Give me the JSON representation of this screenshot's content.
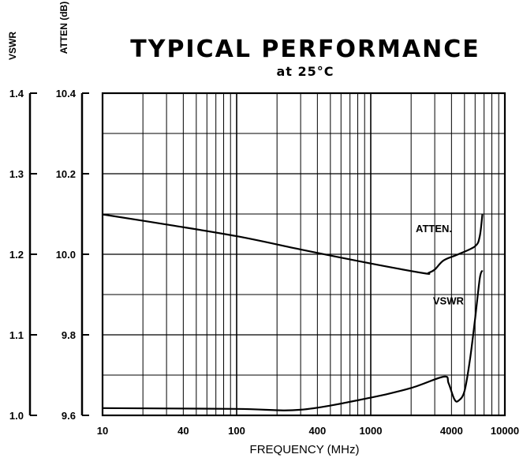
{
  "chart_data": {
    "type": "line",
    "title": "TYPICAL PERFORMANCE",
    "subtitle": "at 25°C",
    "xlabel": "FREQUENCY (MHz)",
    "x_scale": "log",
    "xlim": [
      10,
      10000
    ],
    "x_ticks": [
      10,
      40,
      100,
      400,
      1000,
      4000,
      10000
    ],
    "x_tick_labels": [
      "10",
      "40",
      "100",
      "400",
      "1000",
      "4000",
      "10000"
    ],
    "left_axis": {
      "label": "VSWR",
      "range": [
        1.0,
        1.4
      ],
      "ticks": [
        1.0,
        1.1,
        1.2,
        1.3,
        1.4
      ],
      "tick_labels": [
        "1.0",
        "1.1",
        "1.2",
        "1.3",
        "1.4"
      ]
    },
    "right_axis": {
      "label": "ATTEN (dB)",
      "range": [
        9.6,
        10.4
      ],
      "ticks": [
        9.6,
        9.8,
        10.0,
        10.2,
        10.4
      ],
      "tick_labels": [
        "9.6",
        "9.8",
        "10.0",
        "10.2",
        "10.4"
      ]
    },
    "grid": true,
    "series": [
      {
        "name": "ATTEN.",
        "axis": "ATTEN (dB)",
        "x": [
          10,
          30,
          100,
          300,
          1000,
          2500,
          2700,
          3000,
          3500,
          4500,
          6000,
          6500,
          6800
        ],
        "y": [
          10.099,
          10.074,
          10.045,
          10.012,
          9.977,
          9.953,
          9.954,
          9.962,
          9.985,
          10.0,
          10.02,
          10.045,
          10.099
        ]
      },
      {
        "name": "VSWR",
        "axis": "VSWR",
        "x": [
          10,
          100,
          300,
          1000,
          2000,
          3500,
          3800,
          4200,
          4500,
          5000,
          5500,
          6000,
          6500,
          6800
        ],
        "y": [
          1.009,
          1.008,
          1.007,
          1.022,
          1.034,
          1.048,
          1.04,
          1.02,
          1.018,
          1.03,
          1.07,
          1.12,
          1.17,
          1.18
        ]
      }
    ]
  }
}
